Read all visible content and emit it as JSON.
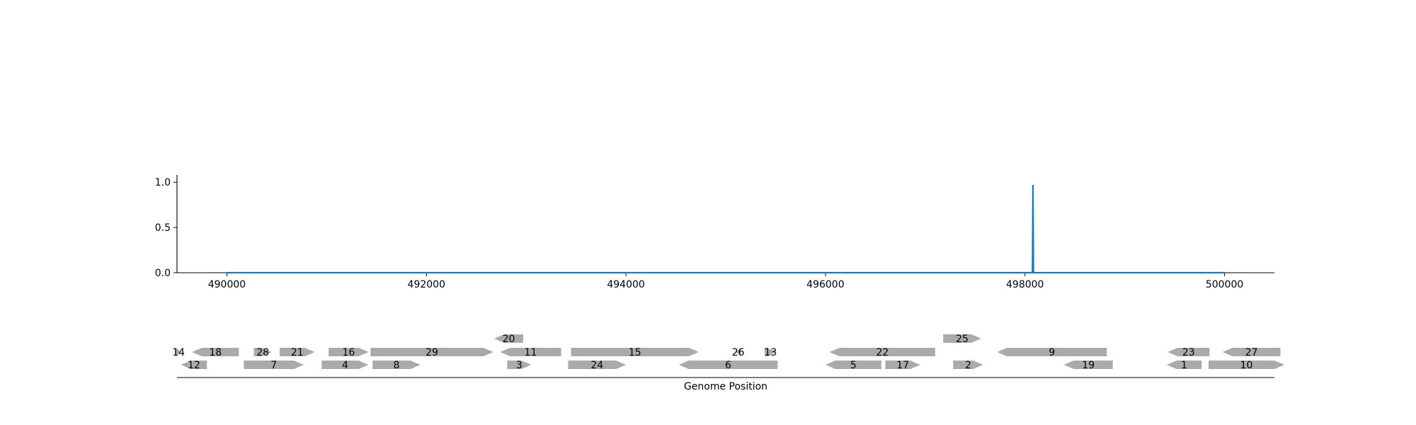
{
  "chart_data": [
    {
      "type": "line",
      "title": "",
      "xlabel": "",
      "ylabel": "",
      "xlim": [
        489500,
        500500
      ],
      "ylim": [
        0,
        1.08
      ],
      "xticks": [
        490000,
        492000,
        494000,
        496000,
        498000,
        500000
      ],
      "xtick_labels": [
        "490000",
        "492000",
        "494000",
        "496000",
        "498000",
        "500000"
      ],
      "yticks": [
        0,
        0.5,
        1
      ],
      "ytick_labels": [
        "0.0",
        "0.5",
        "1.0"
      ],
      "grid": false,
      "series": [
        {
          "color": "#1f77b4",
          "x": [
            490000,
            498075,
            498080,
            498085,
            500000
          ],
          "y": [
            0,
            0,
            0.97,
            0,
            0
          ]
        }
      ]
    },
    {
      "type": "gene-track",
      "xlabel": "Genome Position",
      "xlim": [
        489500,
        500500
      ],
      "feature_color": "#aaaaaa",
      "features": [
        {
          "label": "12",
          "start": 489540,
          "end": 489800,
          "strand": -1,
          "row": 0
        },
        {
          "label": "7",
          "start": 490170,
          "end": 490770,
          "strand": 1,
          "row": 0
        },
        {
          "label": "4",
          "start": 490950,
          "end": 491420,
          "strand": 1,
          "row": 0
        },
        {
          "label": "8",
          "start": 491460,
          "end": 491940,
          "strand": 1,
          "row": 0
        },
        {
          "label": "3",
          "start": 492810,
          "end": 493050,
          "strand": 1,
          "row": 0
        },
        {
          "label": "24",
          "start": 493420,
          "end": 494000,
          "strand": 1,
          "row": 0
        },
        {
          "label": "6",
          "start": 494530,
          "end": 495520,
          "strand": -1,
          "row": 0
        },
        {
          "label": "5",
          "start": 496000,
          "end": 496560,
          "strand": -1,
          "row": 0
        },
        {
          "label": "17",
          "start": 496600,
          "end": 496950,
          "strand": 1,
          "row": 0
        },
        {
          "label": "2",
          "start": 497280,
          "end": 497580,
          "strand": 1,
          "row": 0
        },
        {
          "label": "19",
          "start": 498390,
          "end": 498880,
          "strand": -1,
          "row": 0
        },
        {
          "label": "1",
          "start": 499420,
          "end": 499770,
          "strand": -1,
          "row": 0
        },
        {
          "label": "10",
          "start": 499840,
          "end": 500600,
          "strand": 1,
          "row": 0
        },
        {
          "label": "14",
          "start": 489490,
          "end": 489540,
          "strand": 1,
          "row": 1
        },
        {
          "label": "18",
          "start": 489650,
          "end": 490120,
          "strand": -1,
          "row": 1
        },
        {
          "label": "28",
          "start": 490270,
          "end": 490450,
          "strand": 1,
          "row": 1
        },
        {
          "label": "21",
          "start": 490530,
          "end": 490880,
          "strand": 1,
          "row": 1
        },
        {
          "label": "16",
          "start": 491020,
          "end": 491420,
          "strand": 1,
          "row": 1
        },
        {
          "label": "29",
          "start": 491440,
          "end": 492670,
          "strand": 1,
          "row": 1
        },
        {
          "label": "11",
          "start": 492740,
          "end": 493350,
          "strand": -1,
          "row": 1
        },
        {
          "label": "15",
          "start": 493450,
          "end": 494730,
          "strand": 1,
          "row": 1
        },
        {
          "label": "26",
          "start": 495100,
          "end": 495150,
          "strand": -1,
          "row": 1
        },
        {
          "label": "13",
          "start": 495390,
          "end": 495510,
          "strand": 1,
          "row": 1
        },
        {
          "label": "22",
          "start": 496040,
          "end": 497100,
          "strand": -1,
          "row": 1
        },
        {
          "label": "9",
          "start": 497720,
          "end": 498820,
          "strand": -1,
          "row": 1
        },
        {
          "label": "23",
          "start": 499430,
          "end": 499850,
          "strand": -1,
          "row": 1
        },
        {
          "label": "27",
          "start": 499980,
          "end": 500560,
          "strand": -1,
          "row": 1
        },
        {
          "label": "20",
          "start": 492680,
          "end": 492970,
          "strand": -1,
          "row": 2
        },
        {
          "label": "25",
          "start": 497180,
          "end": 497560,
          "strand": 1,
          "row": 2
        }
      ]
    }
  ]
}
